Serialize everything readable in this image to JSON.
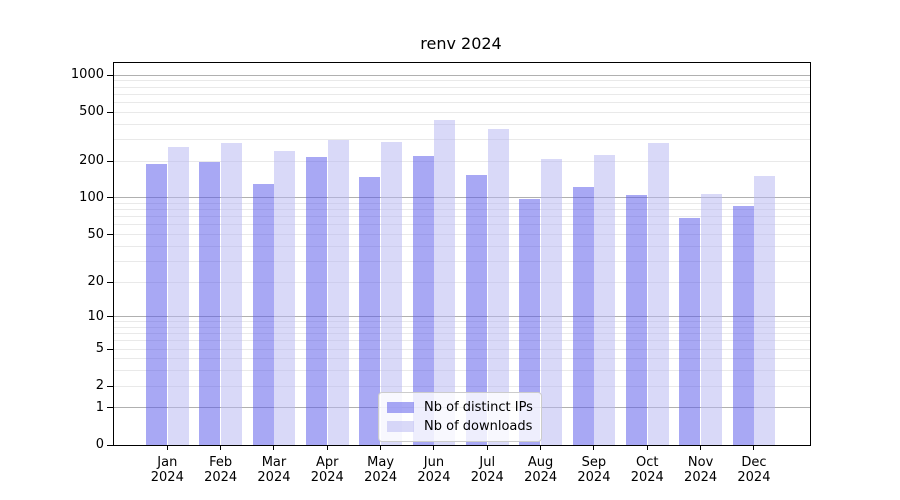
{
  "chart_data": {
    "type": "bar",
    "title": "renv 2024",
    "categories": [
      "Jan",
      "Feb",
      "Mar",
      "Apr",
      "May",
      "Jun",
      "Jul",
      "Aug",
      "Sep",
      "Oct",
      "Nov",
      "Dec"
    ],
    "category_sublabel": "2024",
    "series": [
      {
        "name": "Nb of distinct IPs",
        "color": "rgba(88,88,234,0.52)",
        "values": [
          188,
          195,
          130,
          215,
          148,
          220,
          155,
          98,
          123,
          105,
          68,
          86
        ]
      },
      {
        "name": "Nb of downloads",
        "color": "rgba(182,182,242,0.52)",
        "values": [
          260,
          280,
          240,
          300,
          285,
          430,
          365,
          210,
          225,
          280,
          108,
          150
        ]
      }
    ],
    "y_ticks": [
      0,
      1,
      2,
      5,
      10,
      20,
      50,
      100,
      200,
      500,
      1000
    ],
    "y_axis": {
      "scale": "log10(1+y)",
      "min": 0,
      "max": 1255
    },
    "grid": true,
    "legend_position": "lower center"
  }
}
